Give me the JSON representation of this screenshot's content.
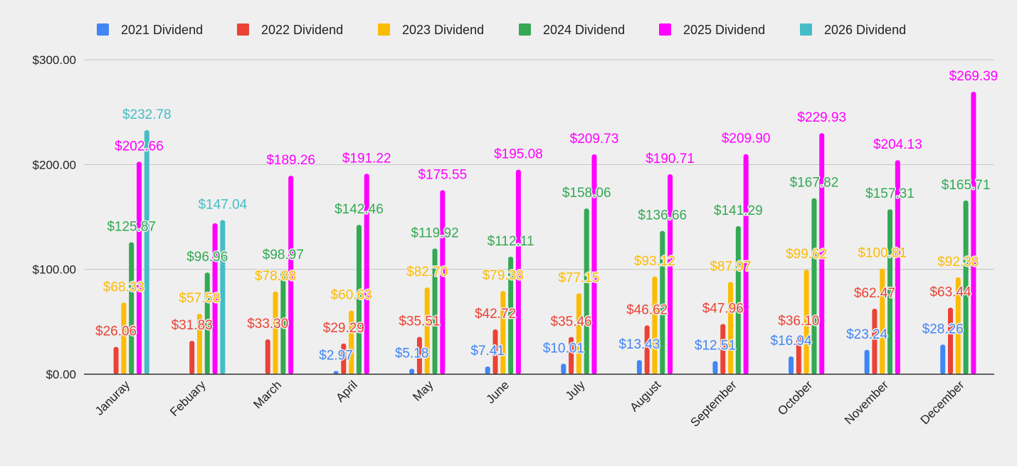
{
  "chart_data": {
    "type": "bar",
    "title": "",
    "xlabel": "",
    "ylabel": "",
    "ylim": [
      0,
      300
    ],
    "yticks": [
      {
        "value": 0,
        "label": "$0.00"
      },
      {
        "value": 100,
        "label": "$100.00"
      },
      {
        "value": 200,
        "label": "$200.00"
      },
      {
        "value": 300,
        "label": "$300.00"
      }
    ],
    "grid": true,
    "legend_position": "top",
    "categories": [
      "Januray",
      "Febuary",
      "March",
      "April",
      "May",
      "June",
      "July",
      "August",
      "September",
      "October",
      "November",
      "December"
    ],
    "series": [
      {
        "name": "2021 Dividend",
        "color": "#4285f4",
        "values": [
          null,
          null,
          null,
          2.97,
          5.18,
          7.41,
          10.01,
          13.43,
          12.51,
          16.94,
          23.24,
          28.26
        ],
        "labels": [
          "",
          "",
          "",
          "$2.97",
          "$5.18",
          "$7.41",
          "$10.01",
          "$13.43",
          "$12.51",
          "$16.94",
          "$23.24",
          "$28.26"
        ]
      },
      {
        "name": "2022 Dividend",
        "color": "#ea4335",
        "values": [
          26.06,
          31.83,
          33.3,
          29.29,
          35.51,
          42.72,
          35.46,
          46.62,
          47.96,
          36.1,
          62.47,
          63.44
        ],
        "labels": [
          "$26.06",
          "$31.83",
          "$33.30",
          "$29.29",
          "$35.51",
          "$42.72",
          "$35.46",
          "$46.62",
          "$47.96",
          "$36.10",
          "$62.47",
          "$63.44"
        ]
      },
      {
        "name": "2023 Dividend",
        "color": "#fbbc04",
        "values": [
          68.33,
          57.58,
          78.88,
          60.63,
          82.7,
          79.38,
          77.15,
          93.12,
          87.97,
          99.62,
          100.81,
          92.38
        ],
        "labels": [
          "$68.33",
          "$57.58",
          "$78.88",
          "$60.63",
          "$82.70",
          "$79.38",
          "$77.15",
          "$93.12",
          "$87.97",
          "$99.62",
          "$100.81",
          "$92.38"
        ]
      },
      {
        "name": "2024 Dividend",
        "color": "#34a853",
        "values": [
          125.87,
          96.96,
          98.97,
          142.46,
          119.92,
          112.11,
          158.06,
          136.66,
          141.29,
          167.82,
          157.31,
          165.71
        ],
        "labels": [
          "$125.87",
          "$96.96",
          "$98.97",
          "$142.46",
          "$119.92",
          "$112.11",
          "$158.06",
          "$136.66",
          "$141.29",
          "$167.82",
          "$157.31",
          "$165.71"
        ]
      },
      {
        "name": "2025 Dividend",
        "color": "#ff00ff",
        "values": [
          202.66,
          144.0,
          189.26,
          191.22,
          175.55,
          195.08,
          209.73,
          190.71,
          209.9,
          229.93,
          204.13,
          269.39
        ],
        "labels": [
          "$202.66",
          "",
          "$189.26",
          "$191.22",
          "$175.55",
          "$195.08",
          "$209.73",
          "$190.71",
          "$209.90",
          "$229.93",
          "$204.13",
          "$269.39"
        ]
      },
      {
        "name": "2026 Dividend",
        "color": "#46bdc6",
        "values": [
          232.78,
          147.04,
          null,
          null,
          null,
          null,
          null,
          null,
          null,
          null,
          null,
          null
        ],
        "labels": [
          "$232.78",
          "$147.04",
          "",
          "",
          "",
          "",
          "",
          "",
          "",
          "",
          "",
          ""
        ]
      }
    ]
  }
}
